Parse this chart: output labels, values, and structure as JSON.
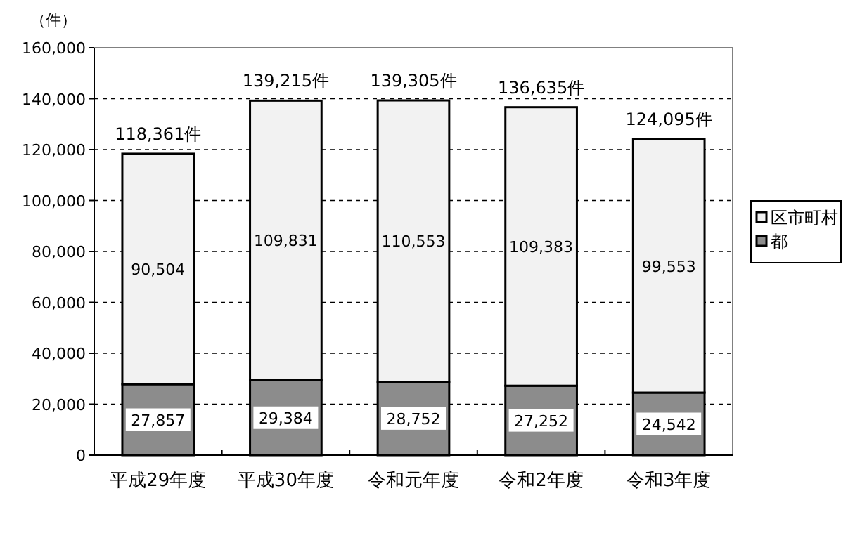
{
  "chart_data": {
    "type": "bar",
    "stacked": true,
    "ylabel": "（件）",
    "categories": [
      "平成29年度",
      "平成30年度",
      "令和元年度",
      "令和2年度",
      "令和3年度"
    ],
    "series": [
      {
        "name": "都",
        "color": "#8c8c8c",
        "values": [
          27857,
          29384,
          28752,
          27252,
          24542
        ],
        "value_labels": [
          "27,857",
          "29,384",
          "28,752",
          "27,252",
          "24,542"
        ]
      },
      {
        "name": "区市町村",
        "color": "#f2f2f2",
        "values": [
          90504,
          109831,
          110553,
          109383,
          99553
        ],
        "value_labels": [
          "90,504",
          "109,831",
          "110,553",
          "109,383",
          "99,553"
        ]
      }
    ],
    "totals": [
      "118,361件",
      "139,215件",
      "139,305件",
      "136,635件",
      "124,095件"
    ],
    "ylim": [
      0,
      160000
    ],
    "yticks": [
      {
        "value": 0,
        "label": "0"
      },
      {
        "value": 20000,
        "label": "20,000"
      },
      {
        "value": 40000,
        "label": "40,000"
      },
      {
        "value": 60000,
        "label": "60,000"
      },
      {
        "value": 80000,
        "label": "80,000"
      },
      {
        "value": 100000,
        "label": "100,000"
      },
      {
        "value": 120000,
        "label": "120,000"
      },
      {
        "value": 140000,
        "label": "140,000"
      },
      {
        "value": 160000,
        "label": "160,000"
      }
    ],
    "grid": "y",
    "legend": "right"
  }
}
